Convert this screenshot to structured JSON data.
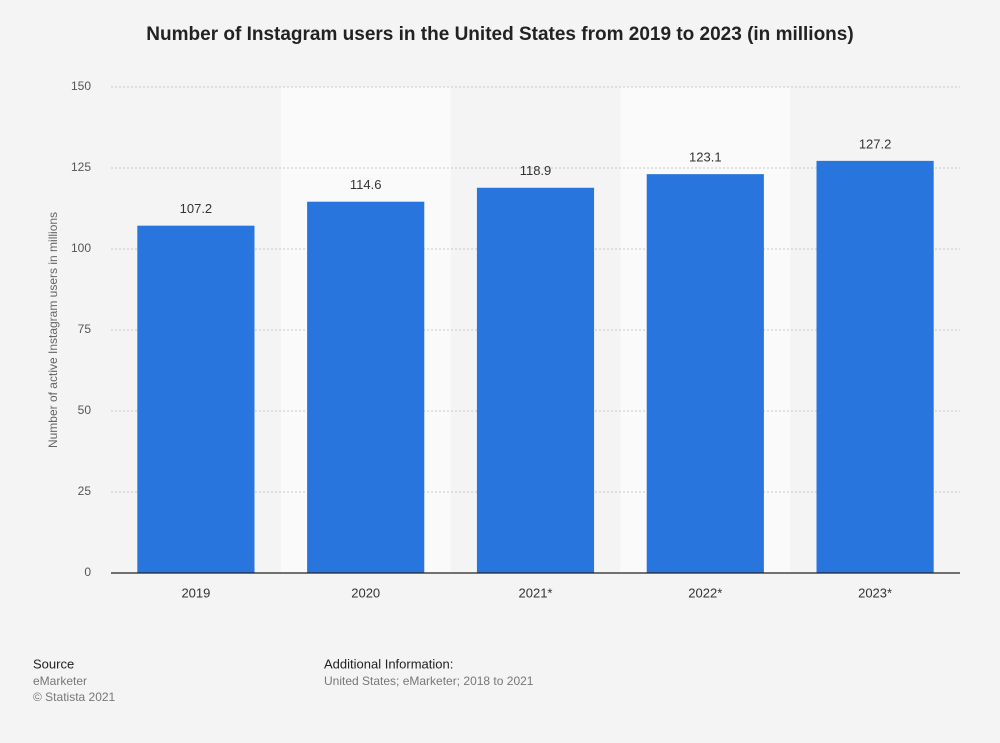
{
  "chart_data": {
    "type": "bar",
    "title": "Number of Instagram users in the United States from 2019 to 2023 (in millions)",
    "y_label": "Number of active Instagram users in millions",
    "categories": [
      "2019",
      "2020",
      "2021*",
      "2022*",
      "2023*"
    ],
    "values": [
      107.2,
      114.6,
      118.9,
      123.1,
      127.2
    ],
    "color": "#2875dd",
    "ylim": [
      0,
      150
    ],
    "yticks": [
      0,
      25,
      50,
      75,
      100,
      125,
      150
    ],
    "grid": true
  },
  "footer": {
    "source_heading": "Source",
    "source": "eMarketer",
    "copyright": "© Statista 2021",
    "info_heading": "Additional Information:",
    "info": "United States; eMarketer; 2018 to 2021"
  }
}
